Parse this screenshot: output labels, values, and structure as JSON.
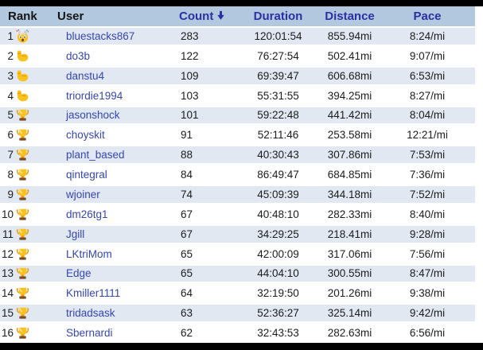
{
  "colors": {
    "letterbox_bar": "#000000",
    "header_bg": "#b2c8de",
    "header_text": "#141414",
    "header_link": "#2b2fa6",
    "row_alt_bg": "#e1e8f2",
    "row_bg": "#ffffff",
    "user_link": "#3646b4",
    "cell_text": "#1c1c1c"
  },
  "table": {
    "columns": [
      {
        "key": "rank",
        "label": "Rank",
        "sortable": false
      },
      {
        "key": "user",
        "label": "User",
        "sortable": false
      },
      {
        "key": "count",
        "label": "Count",
        "sortable": true,
        "sort_icon": "sort-desc-arrow-icon",
        "sorted": "descending"
      },
      {
        "key": "duration",
        "label": "Duration",
        "sortable": true
      },
      {
        "key": "distance",
        "label": "Distance",
        "sortable": true
      },
      {
        "key": "pace",
        "label": "Pace",
        "sortable": true
      }
    ],
    "rows": [
      {
        "rank": "1",
        "icon": "exploding-head-icon",
        "user": "bluestacks867",
        "count": "283",
        "duration": "120:01:54",
        "distance": "855.94mi",
        "pace": "8:24/mi"
      },
      {
        "rank": "2",
        "icon": "flexed-biceps-icon",
        "user": "do3b",
        "count": "122",
        "duration": "76:27:54",
        "distance": "502.41mi",
        "pace": "9:07/mi"
      },
      {
        "rank": "3",
        "icon": "flexed-biceps-icon",
        "user": "danstu4",
        "count": "109",
        "duration": "69:39:47",
        "distance": "606.68mi",
        "pace": "6:53/mi"
      },
      {
        "rank": "4",
        "icon": "flexed-biceps-icon",
        "user": "triordie1994",
        "count": "103",
        "duration": "55:31:55",
        "distance": "394.25mi",
        "pace": "8:27/mi"
      },
      {
        "rank": "5",
        "icon": "trophy-icon",
        "user": "jasonshock",
        "count": "101",
        "duration": "59:22:48",
        "distance": "441.42mi",
        "pace": "8:04/mi"
      },
      {
        "rank": "6",
        "icon": "trophy-icon",
        "user": "choyskit",
        "count": "91",
        "duration": "52:11:46",
        "distance": "253.58mi",
        "pace": "12:21/mi"
      },
      {
        "rank": "7",
        "icon": "trophy-icon",
        "user": "plant_based",
        "count": "88",
        "duration": "40:30:43",
        "distance": "307.86mi",
        "pace": "7:53/mi"
      },
      {
        "rank": "8",
        "icon": "trophy-icon",
        "user": "qintegral",
        "count": "84",
        "duration": "86:49:47",
        "distance": "684.85mi",
        "pace": "7:36/mi"
      },
      {
        "rank": "9",
        "icon": "trophy-icon",
        "user": "wjoiner",
        "count": "74",
        "duration": "45:09:39",
        "distance": "344.18mi",
        "pace": "7:52/mi"
      },
      {
        "rank": "10",
        "icon": "trophy-icon",
        "user": "dm26tg1",
        "count": "67",
        "duration": "40:48:10",
        "distance": "282.33mi",
        "pace": "8:40/mi"
      },
      {
        "rank": "11",
        "icon": "trophy-icon",
        "user": "Jgill",
        "count": "67",
        "duration": "34:29:25",
        "distance": "218.41mi",
        "pace": "9:28/mi"
      },
      {
        "rank": "12",
        "icon": "trophy-icon",
        "user": "LKtriMom",
        "count": "65",
        "duration": "42:00:09",
        "distance": "317.06mi",
        "pace": "7:56/mi"
      },
      {
        "rank": "13",
        "icon": "trophy-icon",
        "user": "Edge",
        "count": "65",
        "duration": "44:04:10",
        "distance": "300.55mi",
        "pace": "8:47/mi"
      },
      {
        "rank": "14",
        "icon": "trophy-icon",
        "user": "Kmiller1111",
        "count": "64",
        "duration": "32:19:50",
        "distance": "201.26mi",
        "pace": "9:38/mi"
      },
      {
        "rank": "15",
        "icon": "trophy-icon",
        "user": "tridadsask",
        "count": "63",
        "duration": "52:36:27",
        "distance": "325.14mi",
        "pace": "9:42/mi"
      },
      {
        "rank": "16",
        "icon": "trophy-icon",
        "user": "Sbernardi",
        "count": "62",
        "duration": "32:43:53",
        "distance": "282.63mi",
        "pace": "6:56/mi"
      }
    ]
  }
}
